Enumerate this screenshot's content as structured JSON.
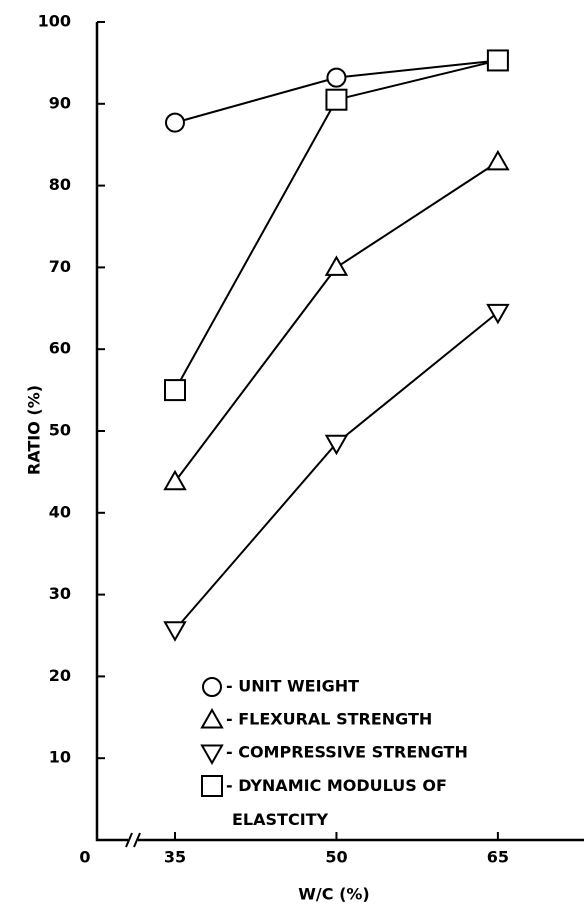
{
  "chart_data": {
    "type": "line",
    "x_label": "W/C (%)",
    "y_label": "RATIO (%)",
    "x": [
      35,
      50,
      65
    ],
    "series": [
      {
        "name": "- UNIT WEIGHT",
        "marker": "circle",
        "color": "#000",
        "values": [
          87.7,
          93.2,
          95.3
        ]
      },
      {
        "name": "- FLEXURAL  STRENGTH",
        "marker": "triangle-up",
        "color": "#000",
        "values": [
          43.8,
          70,
          82.9
        ]
      },
      {
        "name": "- COMPRESSIVE STRENGTH",
        "marker": "triangle-down",
        "color": "#000",
        "values": [
          25.7,
          48.5,
          64.5
        ]
      },
      {
        "name": "- DYNAMIC MODULUS OF\nELASTCITY",
        "marker": "square",
        "color": "#000",
        "values": [
          55,
          90.5,
          95.3
        ]
      }
    ],
    "xlim": [
      0,
      73
    ],
    "xticks": [
      0,
      35,
      50,
      65
    ],
    "x_axis_break": true,
    "ylim": [
      0,
      100
    ],
    "yticks": [
      10,
      20,
      30,
      40,
      50,
      60,
      70,
      80,
      90,
      100
    ],
    "grid": false,
    "legend": "lower right"
  }
}
